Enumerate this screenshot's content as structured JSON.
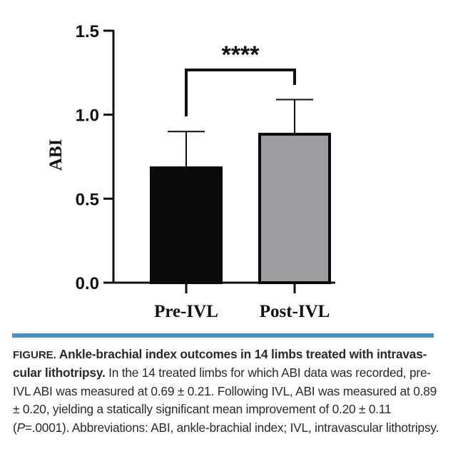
{
  "chart_data": {
    "type": "bar",
    "title": "",
    "xlabel": "",
    "ylabel": "ABI",
    "ylim": [
      0,
      1.5
    ],
    "yticks": [
      0.0,
      0.5,
      1.0,
      1.5
    ],
    "ytick_labels": [
      "0.0",
      "0.5",
      "1.0",
      "1.5"
    ],
    "categories": [
      "Pre-IVL",
      "Post-IVL"
    ],
    "values": [
      0.69,
      0.89
    ],
    "error": [
      0.21,
      0.2
    ],
    "bar_colors": [
      "#0a0a0a",
      "#9c9ca2"
    ],
    "grid": false,
    "legend": "none",
    "annotations": [
      {
        "type": "significance_bracket",
        "between": [
          "Pre-IVL",
          "Post-IVL"
        ],
        "text": "****",
        "y": 1.3
      }
    ]
  },
  "caption": {
    "label": "FIGURE.",
    "title": " Ankle-brachial index outcomes in 14 limbs treated with intravas-cular lithotripsy.",
    "body_1": " In the 14 treated limbs for which ABI data was recorded, pre-IVL ABI was measured at 0.69 ± 0.21. Following IVL, ABI was measured at 0.89 ± 0.20, yielding a statically significant mean improvement of 0.20 ± 0.11 (",
    "p_symbol": "P",
    "body_2": "=.0001). Abbreviations: ABI, ankle-brachial index; IVL, intravascular lithotripsy."
  },
  "colors": {
    "rule": "#4a93c0"
  }
}
